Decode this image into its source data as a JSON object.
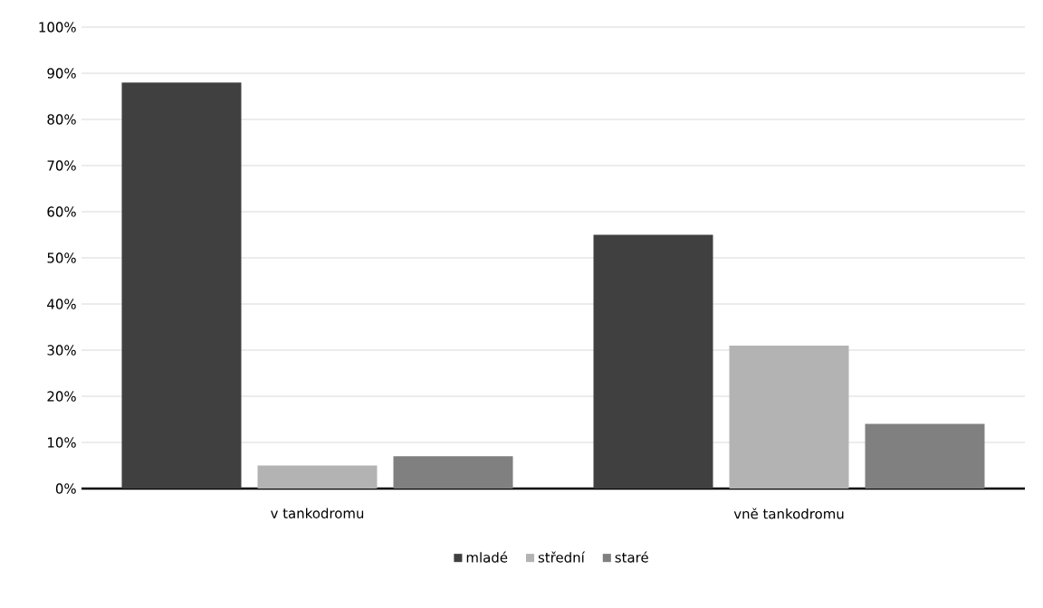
{
  "chart_data": {
    "type": "bar",
    "categories": [
      "v tankodromu",
      "vně tankodromu"
    ],
    "series": [
      {
        "name": "mladé",
        "color": "#404040",
        "values": [
          88,
          55
        ]
      },
      {
        "name": "střední",
        "color": "#b3b3b3",
        "values": [
          5,
          31
        ]
      },
      {
        "name": "staré",
        "color": "#808080",
        "values": [
          7,
          14
        ]
      }
    ],
    "ylim": [
      0,
      100
    ],
    "yticks": [
      {
        "value": 0,
        "label": "0%"
      },
      {
        "value": 10,
        "label": "10%"
      },
      {
        "value": 20,
        "label": "20%"
      },
      {
        "value": 30,
        "label": "30%"
      },
      {
        "value": 40,
        "label": "40%"
      },
      {
        "value": 50,
        "label": "50%"
      },
      {
        "value": 60,
        "label": "60%"
      },
      {
        "value": 70,
        "label": "70%"
      },
      {
        "value": 80,
        "label": "80%"
      },
      {
        "value": 90,
        "label": "90%"
      },
      {
        "value": 100,
        "label": "100%"
      }
    ],
    "grid": "y",
    "legend": "bottom"
  }
}
